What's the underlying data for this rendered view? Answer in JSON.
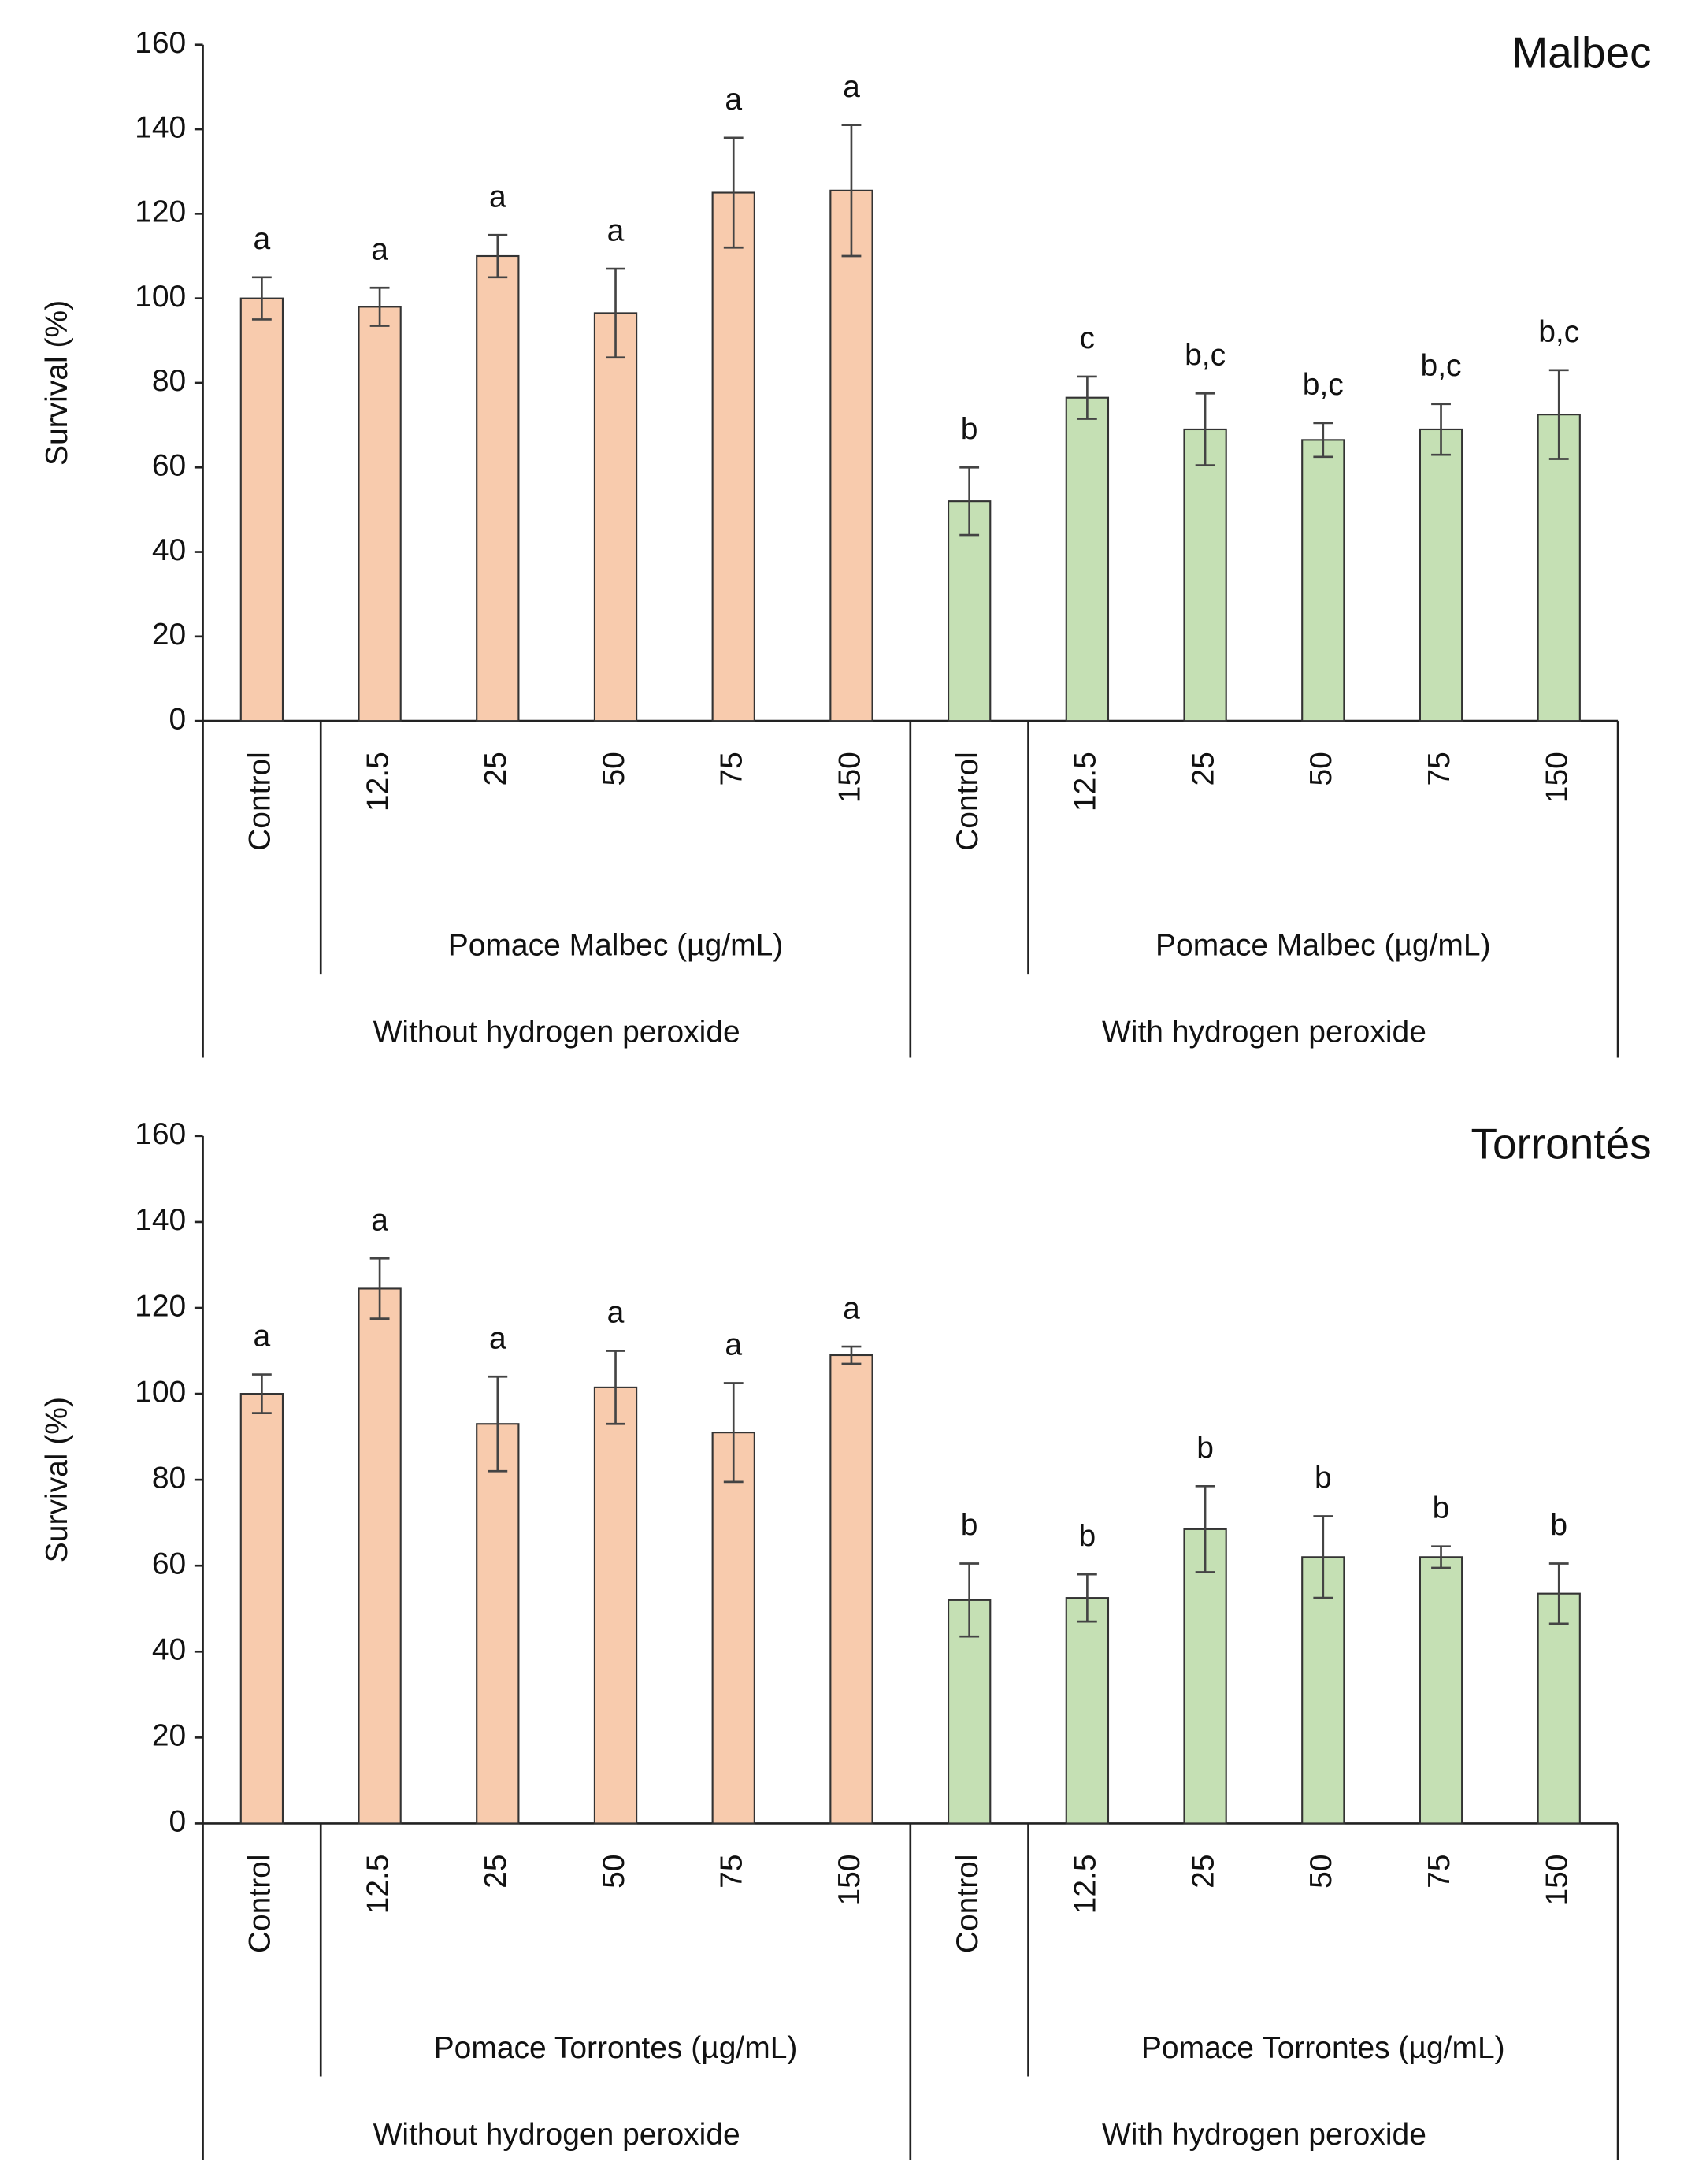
{
  "chart_data": [
    {
      "type": "bar",
      "title": "Malbec",
      "ylabel": "Survival (%)",
      "ylim": [
        0,
        160
      ],
      "yticks": [
        0,
        20,
        40,
        60,
        80,
        100,
        120,
        140,
        160
      ],
      "groups": [
        {
          "name": "Without hydrogen peroxide",
          "subgroup": "Pomace Malbec (µg/mL)",
          "color": "#f8cbad",
          "categories": [
            "Control",
            "12.5",
            "25",
            "50",
            "75",
            "150"
          ],
          "values": [
            100,
            98,
            110,
            96.5,
            125,
            125.5
          ],
          "errors": [
            5,
            4.5,
            5,
            10.5,
            13,
            15.5
          ],
          "annotations": [
            "a",
            "a",
            "a",
            "a",
            "a",
            "a"
          ]
        },
        {
          "name": "With hydrogen peroxide",
          "subgroup": "Pomace Malbec (µg/mL)",
          "color": "#c5e0b4",
          "categories": [
            "Control",
            "12.5",
            "25",
            "50",
            "75",
            "150"
          ],
          "values": [
            52,
            76.5,
            69,
            66.5,
            69,
            72.5
          ],
          "errors": [
            8,
            5,
            8.5,
            4,
            6,
            10.5
          ],
          "annotations": [
            "b",
            "c",
            "b,c",
            "b,c",
            "b,c",
            "b,c"
          ]
        }
      ]
    },
    {
      "type": "bar",
      "title": "Torrontés",
      "ylabel": "Survival (%)",
      "ylim": [
        0,
        160
      ],
      "yticks": [
        0,
        20,
        40,
        60,
        80,
        100,
        120,
        140,
        160
      ],
      "groups": [
        {
          "name": "Without hydrogen peroxide",
          "subgroup": "Pomace Torrontes (µg/mL)",
          "color": "#f8cbad",
          "categories": [
            "Control",
            "12.5",
            "25",
            "50",
            "75",
            "150"
          ],
          "values": [
            100,
            124.5,
            93,
            101.5,
            91,
            109
          ],
          "errors": [
            4.5,
            7,
            11,
            8.5,
            11.5,
            2
          ],
          "annotations": [
            "a",
            "a",
            "a",
            "a",
            "a",
            "a"
          ]
        },
        {
          "name": "With hydrogen peroxide",
          "subgroup": "Pomace Torrontes (µg/mL)",
          "color": "#c5e0b4",
          "categories": [
            "Control",
            "12.5",
            "25",
            "50",
            "75",
            "150"
          ],
          "values": [
            52,
            52.5,
            68.5,
            62,
            62,
            53.5
          ],
          "errors": [
            8.5,
            5.5,
            10,
            9.5,
            2.5,
            7
          ],
          "annotations": [
            "b",
            "b",
            "b",
            "b",
            "b",
            "b"
          ]
        }
      ]
    }
  ]
}
